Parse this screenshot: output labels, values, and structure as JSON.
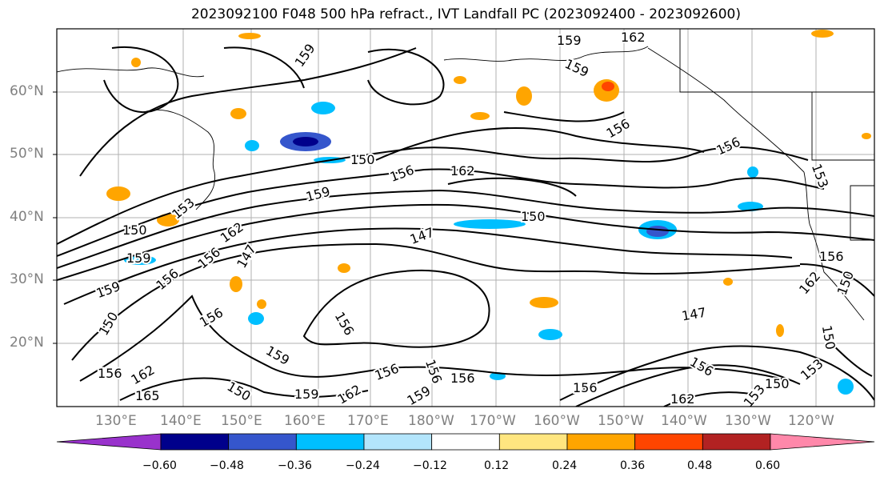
{
  "title": "2023092100 F048 500 hPa refract., IVT Landfall PC (2023092400 - 2023092600)",
  "lat_labels": [
    "60°N",
    "50°N",
    "40°N",
    "30°N",
    "20°N"
  ],
  "lon_labels": [
    "130°E",
    "140°E",
    "150°E",
    "160°E",
    "170°E",
    "180°W",
    "170°W",
    "160°W",
    "150°W",
    "140°W",
    "130°W",
    "120°W"
  ],
  "contour_labels": [
    "159",
    "162",
    "159",
    "159",
    "156",
    "156",
    "150",
    "156",
    "162",
    "153",
    "159",
    "153",
    "150",
    "162",
    "150",
    "147",
    "147",
    "156",
    "159",
    "156",
    "159",
    "150",
    "147",
    "156",
    "156",
    "159",
    "156",
    "165",
    "162",
    "150",
    "159",
    "162",
    "156",
    "156",
    "156",
    "159",
    "156",
    "162",
    "153",
    "150",
    "150",
    "156",
    "162",
    "153",
    "150",
    "156"
  ],
  "colorbar": {
    "ticks": [
      "−0.60",
      "−0.48",
      "−0.36",
      "−0.24",
      "−0.12",
      "0.12",
      "0.24",
      "0.36",
      "0.48",
      "0.60"
    ],
    "colors": [
      "#9932cc",
      "#00008b",
      "#3556cc",
      "#00bfff",
      "#b3e5fc",
      "#ffffff",
      "#ffe680",
      "#ffa500",
      "#ff4500",
      "#b22222",
      "#ff88aa"
    ]
  }
}
